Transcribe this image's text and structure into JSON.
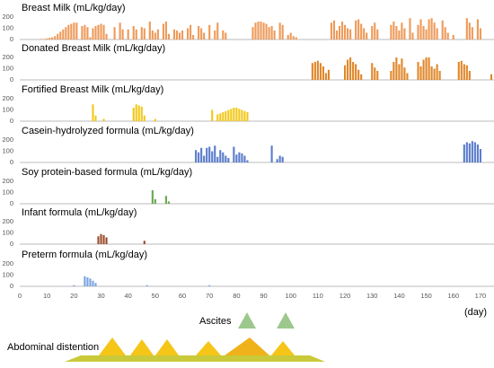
{
  "chart_data": [
    {
      "type": "bar",
      "title": "Breast Milk (mL/kg/day)",
      "color": "#ee9a5a",
      "ylim": [
        0,
        250
      ],
      "yticks": [
        0,
        100,
        200
      ],
      "x": [
        8,
        9,
        10,
        11,
        12,
        13,
        14,
        15,
        16,
        17,
        18,
        19,
        20,
        21,
        23,
        24,
        25,
        26,
        27,
        28,
        29,
        30,
        31,
        32,
        35,
        37,
        38,
        40,
        42,
        43,
        45,
        46,
        48,
        49,
        50,
        51,
        53,
        54,
        55,
        57,
        58,
        59,
        60,
        62,
        63,
        64,
        66,
        67,
        68,
        70,
        72,
        73,
        75,
        76,
        86,
        87,
        88,
        89,
        90,
        91,
        92,
        93,
        94,
        96,
        97,
        99,
        100,
        101,
        102,
        115,
        116,
        117,
        118,
        119,
        120,
        121,
        122,
        124,
        125,
        126,
        127,
        128,
        130,
        131,
        132,
        137,
        138,
        139,
        140,
        141,
        142,
        144,
        145,
        147,
        148,
        149,
        150,
        151,
        152,
        153,
        154,
        156,
        157,
        158,
        160,
        165,
        166,
        167,
        169,
        170
      ],
      "values": [
        5,
        5,
        10,
        15,
        20,
        30,
        50,
        70,
        90,
        110,
        130,
        140,
        150,
        150,
        120,
        130,
        110,
        20,
        100,
        120,
        130,
        140,
        130,
        50,
        110,
        150,
        90,
        90,
        120,
        90,
        110,
        100,
        160,
        80,
        60,
        90,
        140,
        160,
        50,
        90,
        80,
        60,
        80,
        100,
        130,
        40,
        120,
        100,
        60,
        130,
        80,
        150,
        80,
        60,
        110,
        150,
        160,
        160,
        150,
        140,
        110,
        120,
        80,
        150,
        130,
        40,
        60,
        30,
        20,
        150,
        170,
        80,
        120,
        160,
        130,
        100,
        90,
        170,
        180,
        140,
        100,
        60,
        120,
        150,
        90,
        130,
        160,
        120,
        80,
        150,
        100,
        190,
        60,
        130,
        180,
        120,
        90,
        180,
        190,
        150,
        100,
        170,
        110,
        60,
        40,
        190,
        150,
        110,
        180,
        100
      ]
    },
    {
      "type": "bar",
      "title": "Donated Breast Milk (mL/kg/day)",
      "color": "#e0872a",
      "ylim": [
        0,
        250
      ],
      "yticks": [
        0,
        100,
        200
      ],
      "x": [
        108,
        109,
        110,
        111,
        112,
        113,
        114,
        120,
        121,
        122,
        123,
        124,
        125,
        126,
        130,
        131,
        132,
        137,
        138,
        139,
        140,
        141,
        142,
        143,
        147,
        148,
        149,
        150,
        151,
        152,
        153,
        154,
        155,
        162,
        163,
        164,
        165,
        166,
        174
      ],
      "values": [
        150,
        160,
        170,
        150,
        120,
        60,
        90,
        130,
        180,
        200,
        160,
        140,
        90,
        50,
        150,
        110,
        80,
        80,
        160,
        200,
        140,
        190,
        110,
        60,
        160,
        120,
        180,
        200,
        200,
        120,
        100,
        140,
        80,
        160,
        170,
        140,
        130,
        80,
        50
      ]
    },
    {
      "type": "bar",
      "title": "Fortified Breast Milk (mL/kg/day)",
      "color": "#f2c81a",
      "ylim": [
        0,
        250
      ],
      "yticks": [
        0,
        100,
        200
      ],
      "x": [
        27,
        28,
        31,
        42,
        43,
        44,
        45,
        46,
        50,
        71,
        73,
        74,
        75,
        76,
        77,
        78,
        79,
        80,
        81,
        82,
        83,
        84
      ],
      "values": [
        150,
        50,
        20,
        120,
        150,
        140,
        130,
        50,
        20,
        100,
        60,
        70,
        80,
        90,
        100,
        110,
        120,
        120,
        110,
        100,
        90,
        80
      ]
    },
    {
      "type": "bar",
      "title": "Casein-hydrolyzed formula (mL/kg/day)",
      "color": "#5b7ccc",
      "ylim": [
        0,
        250
      ],
      "yticks": [
        0,
        100,
        200
      ],
      "x": [
        65,
        66,
        67,
        68,
        69,
        70,
        71,
        72,
        73,
        74,
        75,
        76,
        77,
        79,
        80,
        81,
        82,
        83,
        84,
        93,
        95,
        96,
        97,
        164,
        165,
        166,
        167,
        168,
        169,
        170
      ],
      "values": [
        110,
        90,
        130,
        60,
        130,
        140,
        100,
        150,
        50,
        110,
        90,
        60,
        40,
        140,
        70,
        90,
        80,
        60,
        20,
        150,
        30,
        60,
        50,
        160,
        180,
        170,
        190,
        180,
        160,
        120
      ]
    },
    {
      "type": "bar",
      "title": "Soy protein-based formula (mL/kg/day)",
      "color": "#6aa84f",
      "ylim": [
        0,
        250
      ],
      "yticks": [
        0,
        100,
        200
      ],
      "x": [
        49,
        50,
        54,
        55
      ],
      "values": [
        120,
        40,
        70,
        20
      ]
    },
    {
      "type": "bar",
      "title": "Infant formula (mL/kg/day)",
      "color": "#9a4b2a",
      "ylim": [
        0,
        250
      ],
      "yticks": [
        0,
        100,
        200
      ],
      "x": [
        29,
        30,
        31,
        32,
        46
      ],
      "values": [
        70,
        90,
        80,
        60,
        30
      ]
    },
    {
      "type": "bar",
      "title": "Preterm formula (mL/kg/day)",
      "color": "#7aa3e0",
      "ylim": [
        0,
        250
      ],
      "yticks": [
        0,
        100,
        200
      ],
      "x": [
        20,
        24,
        25,
        26,
        27,
        28,
        47,
        70
      ],
      "values": [
        10,
        90,
        80,
        70,
        50,
        30,
        10,
        10
      ]
    }
  ],
  "x_axis": {
    "xlim": [
      0,
      175
    ],
    "xticks": [
      0,
      10,
      20,
      30,
      40,
      50,
      60,
      70,
      80,
      90,
      100,
      110,
      120,
      130,
      140,
      150,
      160,
      170
    ],
    "label": "(day)"
  },
  "annotations": {
    "ascites": "Ascites",
    "abdominal_distention": "Abdominal distention"
  }
}
